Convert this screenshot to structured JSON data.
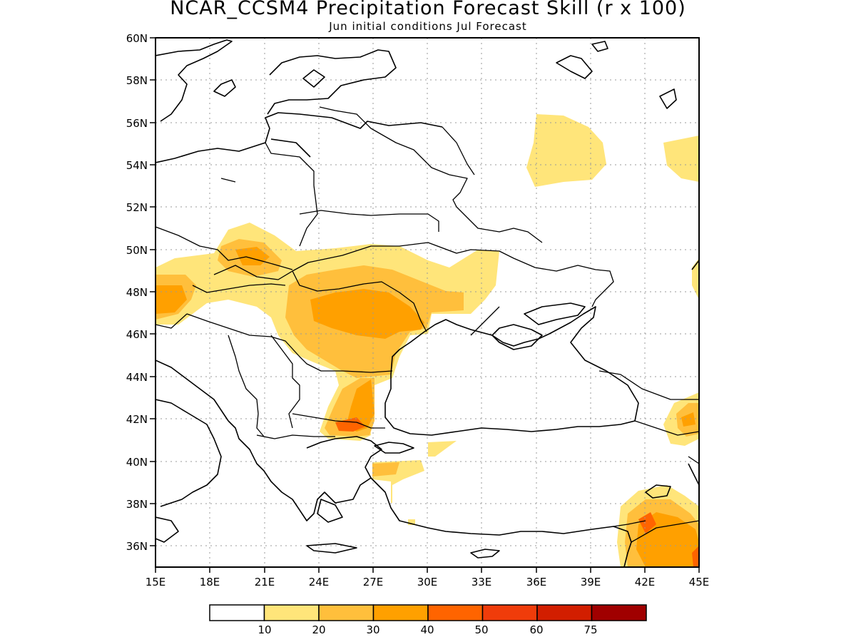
{
  "title": "NCAR_CCSM4 Precipitation Forecast Skill (r x 100)",
  "subtitle": "Jun initial conditions  Jul Forecast",
  "map": {
    "lon_range": [
      15,
      45
    ],
    "lat_range": [
      35,
      60
    ],
    "lon_ticks": [
      "15E",
      "18E",
      "21E",
      "24E",
      "27E",
      "30E",
      "33E",
      "36E",
      "39E",
      "42E",
      "45E"
    ],
    "lat_ticks": [
      "36N",
      "38N",
      "40N",
      "42N",
      "44N",
      "46N",
      "48N",
      "50N",
      "52N",
      "54N",
      "56N",
      "58N",
      "60N"
    ],
    "grid": "dotted"
  },
  "colorbar": {
    "colors": [
      "#ffffff",
      "#ffe57a",
      "#ffbf3c",
      "#ffa000",
      "#ff6400",
      "#f03c0a",
      "#d21e00",
      "#a00000"
    ],
    "labels": [
      "10",
      "20",
      "30",
      "40",
      "50",
      "60",
      "75"
    ]
  },
  "regions": [
    {
      "level": "10-20",
      "color": "#ffe57a",
      "area": "Carpathians, Romania, Moldova, Ukraine"
    },
    {
      "level": "20-30",
      "color": "#ffbf3c",
      "area": "Romania, Bulgaria, Slovakia"
    },
    {
      "level": "30-40",
      "color": "#ffa000",
      "area": "Romania, eastern Bulgaria"
    },
    {
      "level": "10-20",
      "color": "#ffe57a",
      "area": "Central Russia near 37E 55N"
    },
    {
      "level": "10-20",
      "color": "#ffe57a",
      "area": "Georgia / Caucasus coast"
    },
    {
      "level": "20-30",
      "color": "#ffbf3c",
      "area": "Southeastern Turkey, Syria, Iraq"
    },
    {
      "level": "40-50",
      "color": "#ff6400",
      "area": "Southeastern Turkey"
    }
  ]
}
